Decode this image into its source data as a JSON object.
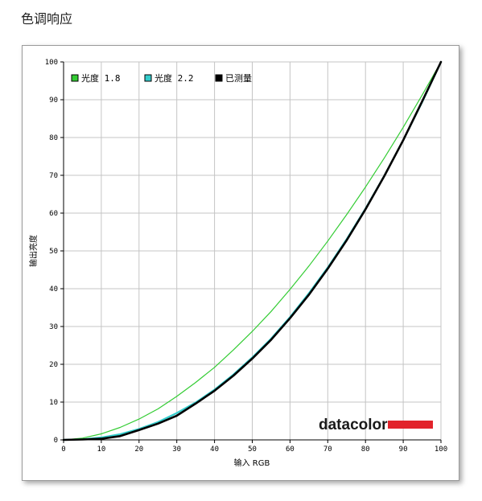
{
  "page": {
    "title": "色调响应"
  },
  "chart_data": {
    "type": "line",
    "xlabel": "输入 RGB",
    "ylabel": "输出亮度",
    "xlim": [
      0,
      100
    ],
    "ylim": [
      0,
      100
    ],
    "x_ticks": [
      0,
      10,
      20,
      30,
      40,
      50,
      60,
      70,
      80,
      90,
      100
    ],
    "y_ticks": [
      0,
      10,
      20,
      30,
      40,
      50,
      60,
      70,
      80,
      90,
      100
    ],
    "grid": true,
    "legend_position": "top-left",
    "x": [
      0,
      5,
      10,
      15,
      20,
      25,
      30,
      35,
      40,
      45,
      50,
      55,
      60,
      65,
      70,
      75,
      80,
      85,
      90,
      95,
      100
    ],
    "series": [
      {
        "name": "光度 1.8",
        "color": "#33cc33",
        "values": [
          0,
          0.46,
          1.6,
          3.3,
          5.5,
          8.2,
          11.5,
          15.2,
          19.2,
          23.8,
          28.7,
          34.0,
          39.8,
          46.0,
          52.6,
          59.6,
          66.9,
          74.6,
          82.7,
          91.2,
          100
        ]
      },
      {
        "name": "光度 2.2",
        "color": "#33cccc",
        "values": [
          0,
          0.14,
          0.63,
          1.5,
          2.9,
          4.7,
          7.1,
          9.9,
          13.3,
          17.3,
          21.8,
          26.8,
          32.5,
          38.8,
          45.6,
          53.1,
          61.2,
          69.9,
          79.3,
          89.3,
          100
        ]
      },
      {
        "name": "已测量",
        "color": "#000000",
        "values": [
          0,
          0.1,
          0.3,
          1.0,
          2.6,
          4.3,
          6.4,
          9.6,
          13.0,
          17.0,
          21.5,
          26.5,
          32.2,
          38.4,
          45.3,
          52.8,
          61.0,
          69.8,
          79.3,
          89.5,
          100
        ]
      }
    ]
  },
  "brand": {
    "name": "datacolor",
    "bar_color": "#e2232b"
  }
}
